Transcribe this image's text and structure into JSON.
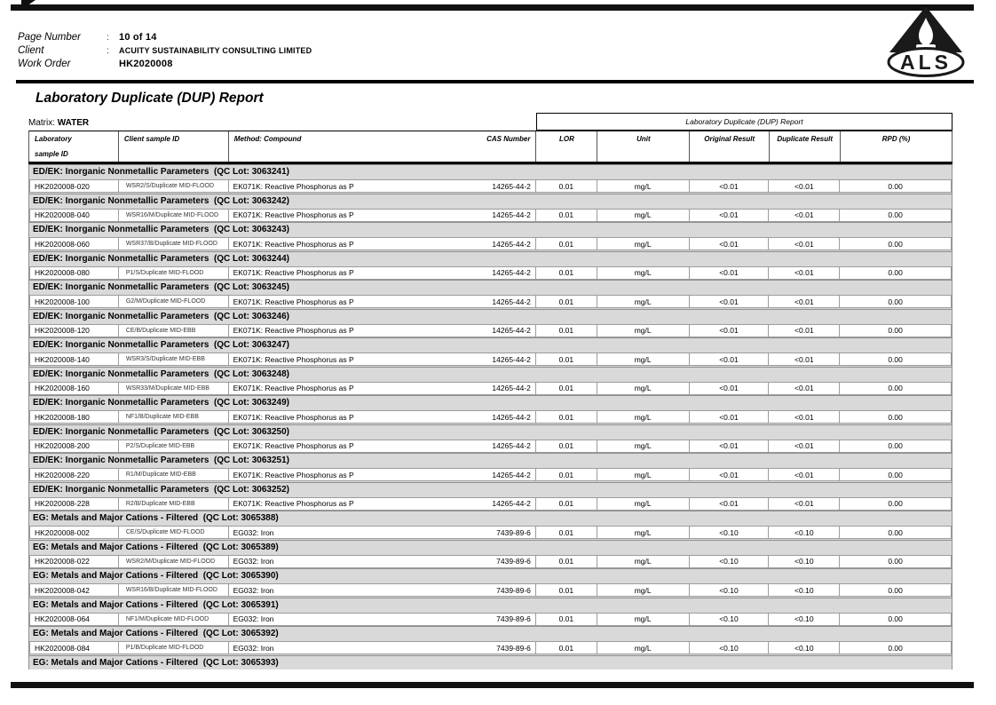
{
  "header": {
    "fields": [
      {
        "label": "Page Number",
        "sep": ":",
        "value": "10 of 14"
      },
      {
        "label": "Client",
        "sep": ":",
        "value": "ACUITY SUSTAINABILITY CONSULTING LIMITED"
      },
      {
        "label": "Work Order",
        "sep": "",
        "value": "HK2020008"
      }
    ],
    "logo_text": "ALS"
  },
  "title": "Laboratory Duplicate (DUP) Report",
  "matrix": {
    "label": "Matrix:",
    "value": "WATER"
  },
  "table": {
    "span_header": "Laboratory Duplicate (DUP) Report",
    "columns": {
      "laboratory_line1": "Laboratory",
      "laboratory_line2": "sample ID",
      "client": "Client sample ID",
      "method": "Method: Compound",
      "cas": "CAS Number",
      "lor": "LOR",
      "unit": "Unit",
      "original": "Original Result",
      "duplicate": "Duplicate Result",
      "rpd": "RPD (%)"
    },
    "sections": [
      {
        "name": "ED/EK: Inorganic Nonmetallic Parameters",
        "qc_lot": "QC Lot: 3063241",
        "rows": [
          {
            "lab_sample_id": "HK2020008-020",
            "client_sample_id": "WSR2/S/Duplicate MID-FLOOD",
            "method": "EK071K: Reactive Phosphorus as P",
            "cas": "14265-44-2",
            "lor": "0.01",
            "unit": "mg/L",
            "original": "<0.01",
            "duplicate": "<0.01",
            "rpd": "0.00"
          }
        ]
      },
      {
        "name": "ED/EK: Inorganic Nonmetallic Parameters",
        "qc_lot": "QC Lot: 3063242",
        "rows": [
          {
            "lab_sample_id": "HK2020008-040",
            "client_sample_id": "WSR16/M/Duplicate MID-FLOOD",
            "method": "EK071K: Reactive Phosphorus as P",
            "cas": "14265-44-2",
            "lor": "0.01",
            "unit": "mg/L",
            "original": "<0.01",
            "duplicate": "<0.01",
            "rpd": "0.00"
          }
        ]
      },
      {
        "name": "ED/EK: Inorganic Nonmetallic Parameters",
        "qc_lot": "QC Lot: 3063243",
        "rows": [
          {
            "lab_sample_id": "HK2020008-060",
            "client_sample_id": "WSR37/B/Duplicate MID-FLOOD",
            "method": "EK071K: Reactive Phosphorus as P",
            "cas": "14265-44-2",
            "lor": "0.01",
            "unit": "mg/L",
            "original": "<0.01",
            "duplicate": "<0.01",
            "rpd": "0.00"
          }
        ]
      },
      {
        "name": "ED/EK: Inorganic Nonmetallic Parameters",
        "qc_lot": "QC Lot: 3063244",
        "rows": [
          {
            "lab_sample_id": "HK2020008-080",
            "client_sample_id": "P1/S/Duplicate MID-FLOOD",
            "method": "EK071K: Reactive Phosphorus as P",
            "cas": "14265-44-2",
            "lor": "0.01",
            "unit": "mg/L",
            "original": "<0.01",
            "duplicate": "<0.01",
            "rpd": "0.00"
          }
        ]
      },
      {
        "name": "ED/EK: Inorganic Nonmetallic Parameters",
        "qc_lot": "QC Lot: 3063245",
        "rows": [
          {
            "lab_sample_id": "HK2020008-100",
            "client_sample_id": "G2/M/Duplicate MID-FLOOD",
            "method": "EK071K: Reactive Phosphorus as P",
            "cas": "14265-44-2",
            "lor": "0.01",
            "unit": "mg/L",
            "original": "<0.01",
            "duplicate": "<0.01",
            "rpd": "0.00"
          }
        ]
      },
      {
        "name": "ED/EK: Inorganic Nonmetallic Parameters",
        "qc_lot": "QC Lot: 3063246",
        "rows": [
          {
            "lab_sample_id": "HK2020008-120",
            "client_sample_id": "CE/B/Duplicate MID-EBB",
            "method": "EK071K: Reactive Phosphorus as P",
            "cas": "14265-44-2",
            "lor": "0.01",
            "unit": "mg/L",
            "original": "<0.01",
            "duplicate": "<0.01",
            "rpd": "0.00"
          }
        ]
      },
      {
        "name": "ED/EK: Inorganic Nonmetallic Parameters",
        "qc_lot": "QC Lot: 3063247",
        "rows": [
          {
            "lab_sample_id": "HK2020008-140",
            "client_sample_id": "WSR3/S/Duplicate MID-EBB",
            "method": "EK071K: Reactive Phosphorus as P",
            "cas": "14265-44-2",
            "lor": "0.01",
            "unit": "mg/L",
            "original": "<0.01",
            "duplicate": "<0.01",
            "rpd": "0.00"
          }
        ]
      },
      {
        "name": "ED/EK: Inorganic Nonmetallic Parameters",
        "qc_lot": "QC Lot: 3063248",
        "rows": [
          {
            "lab_sample_id": "HK2020008-160",
            "client_sample_id": "WSR33/M/Duplicate MID-EBB",
            "method": "EK071K: Reactive Phosphorus as P",
            "cas": "14265-44-2",
            "lor": "0.01",
            "unit": "mg/L",
            "original": "<0.01",
            "duplicate": "<0.01",
            "rpd": "0.00"
          }
        ]
      },
      {
        "name": "ED/EK: Inorganic Nonmetallic Parameters",
        "qc_lot": "QC Lot: 3063249",
        "rows": [
          {
            "lab_sample_id": "HK2020008-180",
            "client_sample_id": "NF1/B/Duplicate MID-EBB",
            "method": "EK071K: Reactive Phosphorus as P",
            "cas": "14265-44-2",
            "lor": "0.01",
            "unit": "mg/L",
            "original": "<0.01",
            "duplicate": "<0.01",
            "rpd": "0.00"
          }
        ]
      },
      {
        "name": "ED/EK: Inorganic Nonmetallic Parameters",
        "qc_lot": "QC Lot: 3063250",
        "rows": [
          {
            "lab_sample_id": "HK2020008-200",
            "client_sample_id": "P2/S/Duplicate MID-EBB",
            "method": "EK071K: Reactive Phosphorus as P",
            "cas": "14265-44-2",
            "lor": "0.01",
            "unit": "mg/L",
            "original": "<0.01",
            "duplicate": "<0.01",
            "rpd": "0.00"
          }
        ]
      },
      {
        "name": "ED/EK: Inorganic Nonmetallic Parameters",
        "qc_lot": "QC Lot: 3063251",
        "rows": [
          {
            "lab_sample_id": "HK2020008-220",
            "client_sample_id": "R1/M/Duplicate MID-EBB",
            "method": "EK071K: Reactive Phosphorus as P",
            "cas": "14265-44-2",
            "lor": "0.01",
            "unit": "mg/L",
            "original": "<0.01",
            "duplicate": "<0.01",
            "rpd": "0.00"
          }
        ]
      },
      {
        "name": "ED/EK: Inorganic Nonmetallic Parameters",
        "qc_lot": "QC Lot: 3063252",
        "rows": [
          {
            "lab_sample_id": "HK2020008-228",
            "client_sample_id": "R2/B/Duplicate MID-EBB",
            "method": "EK071K: Reactive Phosphorus as P",
            "cas": "14265-44-2",
            "lor": "0.01",
            "unit": "mg/L",
            "original": "<0.01",
            "duplicate": "<0.01",
            "rpd": "0.00"
          }
        ]
      },
      {
        "name": "EG: Metals and Major Cations - Filtered",
        "qc_lot": "QC Lot: 3065388",
        "rows": [
          {
            "lab_sample_id": "HK2020008-002",
            "client_sample_id": "CE/S/Duplicate MID-FLOOD",
            "method": "EG032: Iron",
            "cas": "7439-89-6",
            "lor": "0.01",
            "unit": "mg/L",
            "original": "<0.10",
            "duplicate": "<0.10",
            "rpd": "0.00"
          }
        ]
      },
      {
        "name": "EG: Metals and Major Cations - Filtered",
        "qc_lot": "QC Lot: 3065389",
        "rows": [
          {
            "lab_sample_id": "HK2020008-022",
            "client_sample_id": "WSR2/M/Duplicate MID-FLOOD",
            "method": "EG032: Iron",
            "cas": "7439-89-6",
            "lor": "0.01",
            "unit": "mg/L",
            "original": "<0.10",
            "duplicate": "<0.10",
            "rpd": "0.00"
          }
        ]
      },
      {
        "name": "EG: Metals and Major Cations - Filtered",
        "qc_lot": "QC Lot: 3065390",
        "rows": [
          {
            "lab_sample_id": "HK2020008-042",
            "client_sample_id": "WSR16/B/Duplicate MID-FLOOD",
            "method": "EG032: Iron",
            "cas": "7439-89-6",
            "lor": "0.01",
            "unit": "mg/L",
            "original": "<0.10",
            "duplicate": "<0.10",
            "rpd": "0.00"
          }
        ]
      },
      {
        "name": "EG: Metals and Major Cations - Filtered",
        "qc_lot": "QC Lot: 3065391",
        "rows": [
          {
            "lab_sample_id": "HK2020008-064",
            "client_sample_id": "NF1/M/Duplicate MID-FLOOD",
            "method": "EG032: Iron",
            "cas": "7439-89-6",
            "lor": "0.01",
            "unit": "mg/L",
            "original": "<0.10",
            "duplicate": "<0.10",
            "rpd": "0.00"
          }
        ]
      },
      {
        "name": "EG: Metals and Major Cations - Filtered",
        "qc_lot": "QC Lot: 3065392",
        "rows": [
          {
            "lab_sample_id": "HK2020008-084",
            "client_sample_id": "P1/B/Duplicate MID-FLOOD",
            "method": "EG032: Iron",
            "cas": "7439-89-6",
            "lor": "0.01",
            "unit": "mg/L",
            "original": "<0.10",
            "duplicate": "<0.10",
            "rpd": "0.00"
          }
        ]
      },
      {
        "name": "EG: Metals and Major Cations - Filtered",
        "qc_lot": "QC Lot: 3065393",
        "rows": []
      }
    ]
  }
}
